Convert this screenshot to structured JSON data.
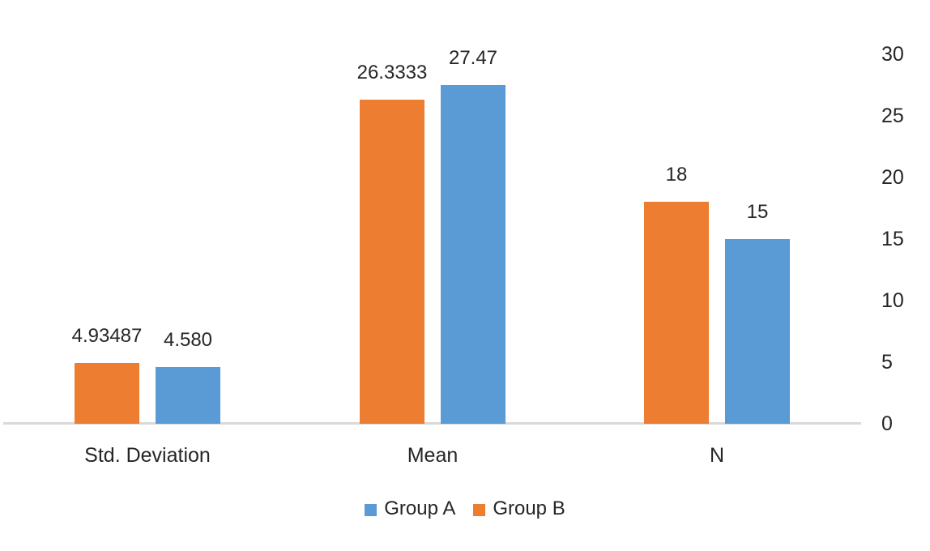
{
  "chart_data": {
    "type": "bar",
    "title": "",
    "categories": [
      "Std. Deviation",
      "Mean",
      "N"
    ],
    "series": [
      {
        "name": "Group B",
        "color": "#ED7D31",
        "values": [
          4.93487,
          26.3333,
          18
        ],
        "data_labels": [
          "4.93487",
          "26.3333",
          "18"
        ]
      },
      {
        "name": "Group A",
        "color": "#5B9BD5",
        "values": [
          4.58,
          27.47,
          15
        ],
        "data_labels": [
          "4.580",
          "27.47",
          "15"
        ]
      }
    ],
    "legend": {
      "position": "bottom",
      "entries": [
        {
          "label": "Group A",
          "color": "#5B9BD5"
        },
        {
          "label": "Group B",
          "color": "#ED7D31"
        }
      ]
    },
    "y_axis": {
      "side": "right",
      "range": [
        0,
        30
      ],
      "tick_interval": 5,
      "tick_values": [
        0,
        5,
        10,
        15,
        20,
        25,
        30
      ],
      "ticks": [
        "0",
        "5",
        "10",
        "15",
        "20",
        "25",
        "30"
      ]
    },
    "x_axis": {
      "line_color": "#D9D9D9"
    },
    "gridlines": false,
    "background": "#FFFFFF",
    "text_color": "#262626"
  }
}
